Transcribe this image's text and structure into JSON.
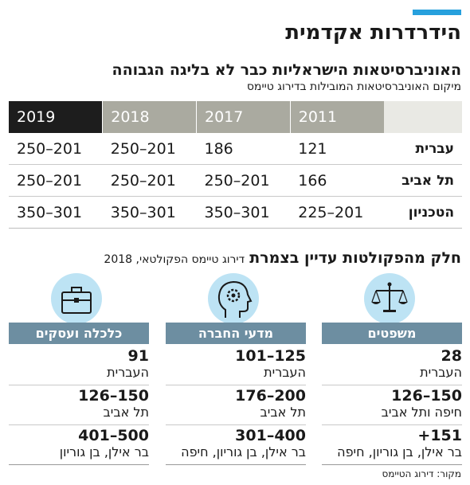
{
  "title": "הידרדרות אקדמית",
  "ranking": {
    "subtitle": "האוניברסיטאות הישראליות כבר לא בליגה הגבוהה",
    "caption": "מיקום האוניברסיטאות המובילות בדירוג טיימס",
    "years": [
      "2011",
      "2017",
      "2018",
      "2019"
    ],
    "rows": [
      {
        "name": "עברית",
        "values": [
          "121",
          "186",
          "201–250",
          "201–250"
        ]
      },
      {
        "name": "תל אביב",
        "values": [
          "166",
          "201–250",
          "201–250",
          "201–250"
        ]
      },
      {
        "name": "הטכניון",
        "values": [
          "201–225",
          "301–350",
          "301–350",
          "301–350"
        ]
      }
    ]
  },
  "faculties": {
    "heading": "חלק מהפקולטות עדיין בצמרת",
    "note": "דירוג טיימס הפקולטאי, 2018",
    "columns": [
      {
        "name": "משפטים",
        "icon": "scales-icon",
        "entries": [
          {
            "value": "28",
            "label": "העברית"
          },
          {
            "value": "126–150",
            "label": "חיפה ותל אביב"
          },
          {
            "value": "+151",
            "label": "בר אילן, בן גוריון, חיפה"
          }
        ]
      },
      {
        "name": "מדעי החברה",
        "icon": "head-gear-icon",
        "entries": [
          {
            "value": "101–125",
            "label": "העברית"
          },
          {
            "value": "176–200",
            "label": "תל אביב"
          },
          {
            "value": "301–400",
            "label": "בר אילן, בן גוריון, חיפה"
          }
        ]
      },
      {
        "name": "כלכלה ועסקים",
        "icon": "briefcase-icon",
        "entries": [
          {
            "value": "91",
            "label": "העברית"
          },
          {
            "value": "126–150",
            "label": "תל אביב"
          },
          {
            "value": "401–500",
            "label": "בר אילן, בן גוריון"
          }
        ]
      }
    ]
  },
  "source": "מקור: דירוג הטיימס",
  "colors": {
    "accent": "#27a0dd",
    "header_gray": "#aaaaa0",
    "header_dark": "#1d1d1d",
    "faculty_header": "#6d8ea1",
    "icon_bg": "#bde3f4"
  }
}
